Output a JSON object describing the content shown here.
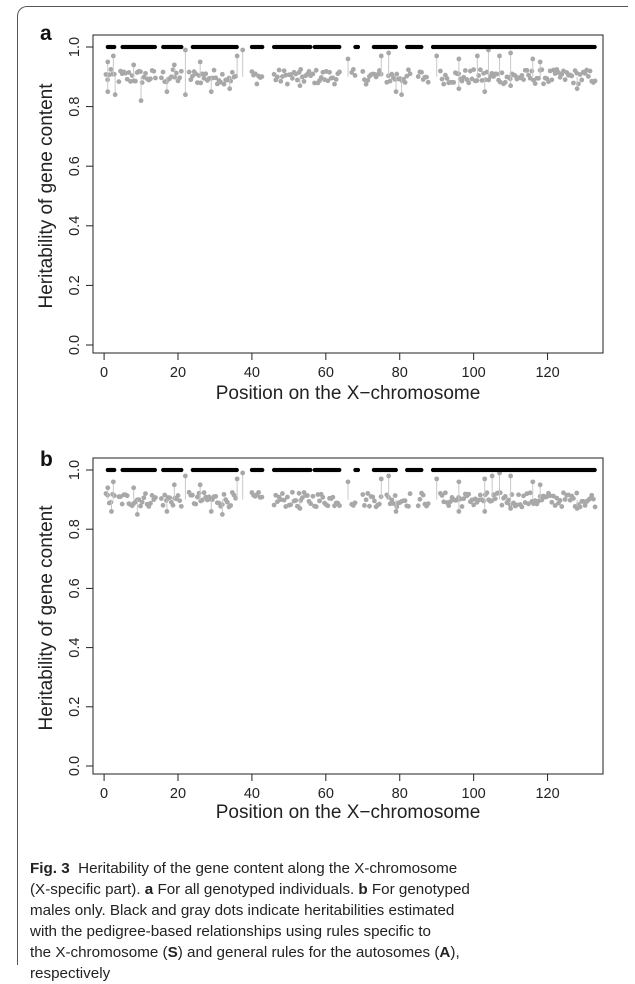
{
  "chart_data": [
    {
      "type": "scatter",
      "panel_label": "a",
      "xlabel": "Position on the X−chromosome",
      "ylabel": "Heritability of gene content",
      "xlim": [
        -3,
        135
      ],
      "ylim": [
        0.0,
        1.0
      ],
      "xticks": [
        0,
        20,
        40,
        60,
        80,
        100,
        120
      ],
      "yticks": [
        0.0,
        0.2,
        0.4,
        0.6,
        0.8,
        1.0
      ],
      "ytick_labels": [
        "0.0",
        "0.2",
        "0.4",
        "0.6",
        "0.8",
        "1.0"
      ],
      "grid": false,
      "series": [
        {
          "color": "#000000",
          "segments": [
            [
              1,
              3
            ],
            [
              5,
              14
            ],
            [
              16,
              21
            ],
            [
              24,
              36
            ],
            [
              40,
              43
            ],
            [
              46,
              56
            ],
            [
              57,
              64
            ],
            [
              68,
              69
            ],
            [
              73,
              79
            ],
            [
              82,
              86
            ],
            [
              89,
              133
            ]
          ],
          "y": 1.0
        },
        {
          "color": "#a8a8a8",
          "segments": [
            [
              0.5,
              3
            ],
            [
              4,
              14
            ],
            [
              15.5,
              21
            ],
            [
              23,
              36
            ],
            [
              40,
              43
            ],
            [
              46,
              56
            ],
            [
              56.5,
              64
            ],
            [
              67,
              68
            ],
            [
              70,
              75
            ],
            [
              76.5,
              83
            ],
            [
              85,
              88
            ],
            [
              91,
              133
            ]
          ],
          "y_center": 0.9,
          "low_points": [
            [
              1,
              0.85
            ],
            [
              3,
              0.84
            ],
            [
              10,
              0.82
            ],
            [
              17,
              0.85
            ],
            [
              22,
              0.84
            ],
            [
              29,
              0.85
            ],
            [
              34,
              0.86
            ],
            [
              53,
              0.87
            ],
            [
              79,
              0.85
            ],
            [
              80.5,
              0.84
            ],
            [
              96,
              0.86
            ],
            [
              103,
              0.85
            ],
            [
              110,
              0.87
            ],
            [
              128,
              0.86
            ]
          ],
          "high_points": [
            [
              1,
              0.95
            ],
            [
              2.5,
              0.97
            ],
            [
              8,
              0.94
            ],
            [
              19,
              0.94
            ],
            [
              22,
              0.99
            ],
            [
              26,
              0.95
            ],
            [
              36,
              0.97
            ],
            [
              37.5,
              0.99
            ],
            [
              66,
              0.96
            ],
            [
              75,
              0.97
            ],
            [
              77,
              0.98
            ],
            [
              90,
              0.97
            ],
            [
              96,
              0.96
            ],
            [
              101,
              0.97
            ],
            [
              104,
              0.99
            ],
            [
              107,
              0.97
            ],
            [
              110,
              0.98
            ],
            [
              116,
              0.96
            ],
            [
              118,
              0.95
            ]
          ]
        }
      ]
    },
    {
      "type": "scatter",
      "panel_label": "b",
      "xlabel": "Position on the X−chromosome",
      "ylabel": "Heritability of gene content",
      "xlim": [
        -3,
        135
      ],
      "ylim": [
        0.0,
        1.0
      ],
      "xticks": [
        0,
        20,
        40,
        60,
        80,
        100,
        120
      ],
      "yticks": [
        0.0,
        0.2,
        0.4,
        0.6,
        0.8,
        1.0
      ],
      "ytick_labels": [
        "0.0",
        "0.2",
        "0.4",
        "0.6",
        "0.8",
        "1.0"
      ],
      "grid": false,
      "series": [
        {
          "color": "#000000",
          "segments": [
            [
              1,
              3
            ],
            [
              5,
              14
            ],
            [
              16,
              21
            ],
            [
              24,
              36
            ],
            [
              40,
              43
            ],
            [
              46,
              56
            ],
            [
              57,
              64
            ],
            [
              68,
              69
            ],
            [
              73,
              79
            ],
            [
              82,
              86
            ],
            [
              89,
              133
            ]
          ],
          "y": 1.0
        },
        {
          "color": "#a8a8a8",
          "segments": [
            [
              0.5,
              3
            ],
            [
              4,
              14
            ],
            [
              15.5,
              21
            ],
            [
              23,
              36
            ],
            [
              40,
              43
            ],
            [
              46,
              56
            ],
            [
              56.5,
              64
            ],
            [
              67,
              68
            ],
            [
              70,
              75
            ],
            [
              76.5,
              83
            ],
            [
              85,
              88
            ],
            [
              91,
              133
            ]
          ],
          "y_center": 0.9,
          "low_points": [
            [
              2,
              0.86
            ],
            [
              9,
              0.85
            ],
            [
              17,
              0.86
            ],
            [
              29,
              0.86
            ],
            [
              32,
              0.85
            ],
            [
              53,
              0.87
            ],
            [
              79,
              0.86
            ],
            [
              96,
              0.86
            ],
            [
              103,
              0.86
            ],
            [
              110,
              0.87
            ],
            [
              128,
              0.87
            ]
          ],
          "high_points": [
            [
              1,
              0.94
            ],
            [
              2.5,
              0.96
            ],
            [
              8,
              0.94
            ],
            [
              19,
              0.95
            ],
            [
              22,
              0.98
            ],
            [
              26,
              0.95
            ],
            [
              36,
              0.97
            ],
            [
              37.5,
              0.99
            ],
            [
              66,
              0.96
            ],
            [
              75,
              0.97
            ],
            [
              77,
              0.98
            ],
            [
              90,
              0.97
            ],
            [
              96,
              0.96
            ],
            [
              103,
              0.97
            ],
            [
              105,
              0.98
            ],
            [
              107,
              0.99
            ],
            [
              110,
              0.98
            ],
            [
              116,
              0.96
            ],
            [
              118,
              0.95
            ]
          ]
        }
      ]
    }
  ],
  "caption": {
    "fig_label": "Fig. 3",
    "line1": "Heritability of the gene content along the X-chromosome",
    "line2_a": "(X-specific part). ",
    "a": "a",
    "line2_b": " For all genotyped individuals. ",
    "b": "b",
    "line2_c": " For genotyped",
    "line3": "males only. Black and gray dots indicate heritabilities estimated",
    "line4": "with the pedigree-based relationships using rules specific to",
    "line5_a": "the X-chromosome (",
    "S": "S",
    "line5_b": ") and general rules for the autosomes (",
    "A": "A",
    "line5_c": "),",
    "line6": "respectively"
  }
}
